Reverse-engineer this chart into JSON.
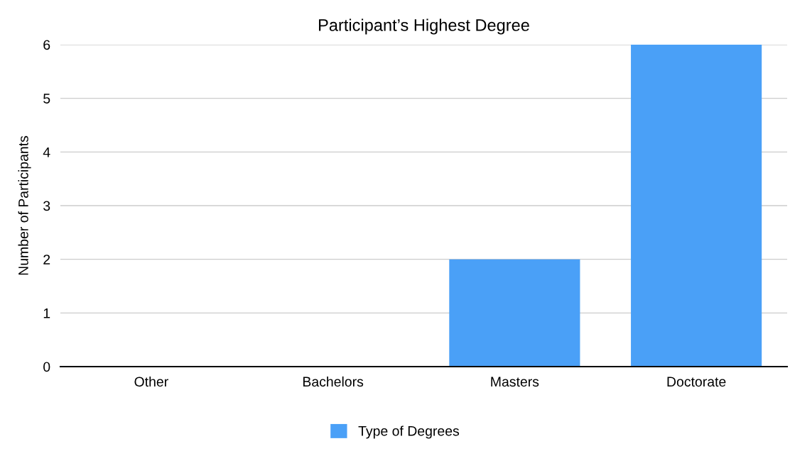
{
  "chart_data": {
    "type": "bar",
    "title": "Participant’s Highest Degree",
    "ylabel": "Number of Participants",
    "categories": [
      "Other",
      "Bachelors",
      "Masters",
      "Doctorate"
    ],
    "series": [
      {
        "name": "Type of Degrees",
        "color": "#4aa0f7",
        "values": [
          0,
          0,
          2,
          6
        ]
      }
    ],
    "ylim": [
      0,
      6
    ],
    "yticks": [
      0,
      1,
      2,
      3,
      4,
      5,
      6
    ],
    "grid": "y",
    "legend": "bottom"
  }
}
